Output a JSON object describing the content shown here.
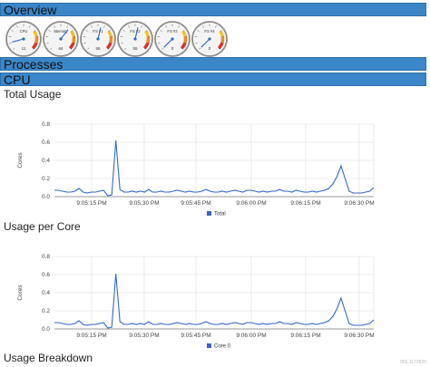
{
  "sections": {
    "overview": "Overview",
    "processes": "Processes",
    "cpu": "CPU"
  },
  "headings": {
    "total_usage": "Total Usage",
    "usage_per_core": "Usage per Core",
    "usage_breakdown": "Usage Breakdown"
  },
  "gauges": [
    {
      "label": "CPU",
      "value": "11",
      "level": 0.11
    },
    {
      "label": "Memory",
      "value": "64",
      "level": 0.64
    },
    {
      "label": "FS #1",
      "value": "55",
      "level": 0.55
    },
    {
      "label": "FS #2",
      "value": "55",
      "level": 0.55
    },
    {
      "label": "FS #3",
      "value": "0",
      "level": 0.0
    },
    {
      "label": "FS #4",
      "value": "0",
      "level": 0.0
    }
  ],
  "colors": {
    "section_bar": "#3b86c9",
    "series": "#3366cc"
  },
  "watermark": "IBS-1172826",
  "chart_data": [
    {
      "type": "line",
      "title": "",
      "ylabel": "Cores",
      "xlabel": "",
      "ylim": [
        0,
        0.8
      ],
      "yticks": [
        "0.0",
        "0.2",
        "0.4",
        "0.6",
        "0.8"
      ],
      "xticks": [
        "9:05:15 PM",
        "9:05:30 PM",
        "9:05:45 PM",
        "9:06:00 PM",
        "9:06:15 PM",
        "9:06:30 PM"
      ],
      "grid": true,
      "legend": "bottom",
      "x_seconds_range": [
        0,
        78
      ],
      "series": [
        {
          "name": "Total",
          "values": [
            0.07,
            0.07,
            0.06,
            0.05,
            0.05,
            0.06,
            0.09,
            0.05,
            0.04,
            0.05,
            0.05,
            0.06,
            0.07,
            0.01,
            0.02,
            0.62,
            0.08,
            0.05,
            0.05,
            0.06,
            0.05,
            0.06,
            0.05,
            0.08,
            0.05,
            0.05,
            0.06,
            0.05,
            0.05,
            0.06,
            0.07,
            0.06,
            0.05,
            0.06,
            0.05,
            0.05,
            0.06,
            0.08,
            0.06,
            0.05,
            0.05,
            0.06,
            0.05,
            0.06,
            0.07,
            0.06,
            0.05,
            0.07,
            0.07,
            0.06,
            0.05,
            0.06,
            0.05,
            0.06,
            0.06,
            0.08,
            0.06,
            0.06,
            0.05,
            0.07,
            0.06,
            0.05,
            0.05,
            0.06,
            0.05,
            0.06,
            0.07,
            0.09,
            0.14,
            0.22,
            0.34,
            0.2,
            0.06,
            0.04,
            0.04,
            0.04,
            0.05,
            0.06,
            0.1
          ]
        }
      ]
    },
    {
      "type": "line",
      "title": "",
      "ylabel": "Cores",
      "xlabel": "",
      "ylim": [
        0,
        0.8
      ],
      "yticks": [
        "0.0",
        "0.2",
        "0.4",
        "0.6",
        "0.8"
      ],
      "xticks": [
        "9:05:15 PM",
        "9:05:30 PM",
        "9:05:45 PM",
        "9:06:00 PM",
        "9:06:15 PM",
        "9:06:30 PM"
      ],
      "grid": true,
      "legend": "bottom",
      "x_seconds_range": [
        0,
        78
      ],
      "series": [
        {
          "name": "Core 0",
          "values": [
            0.07,
            0.07,
            0.06,
            0.05,
            0.05,
            0.06,
            0.09,
            0.05,
            0.04,
            0.05,
            0.05,
            0.06,
            0.07,
            0.01,
            0.02,
            0.61,
            0.08,
            0.05,
            0.05,
            0.06,
            0.05,
            0.06,
            0.05,
            0.08,
            0.05,
            0.05,
            0.06,
            0.05,
            0.05,
            0.06,
            0.07,
            0.06,
            0.05,
            0.06,
            0.05,
            0.05,
            0.06,
            0.08,
            0.06,
            0.05,
            0.05,
            0.06,
            0.05,
            0.06,
            0.07,
            0.06,
            0.05,
            0.07,
            0.07,
            0.06,
            0.05,
            0.06,
            0.05,
            0.06,
            0.06,
            0.08,
            0.06,
            0.06,
            0.05,
            0.07,
            0.06,
            0.05,
            0.05,
            0.06,
            0.05,
            0.06,
            0.07,
            0.09,
            0.14,
            0.22,
            0.34,
            0.2,
            0.06,
            0.04,
            0.04,
            0.04,
            0.05,
            0.06,
            0.1
          ]
        }
      ]
    }
  ]
}
